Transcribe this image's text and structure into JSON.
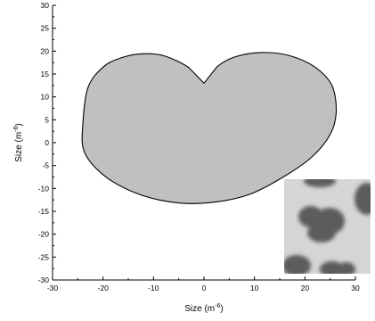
{
  "chart_data": {
    "type": "area",
    "title": "",
    "xlabel": "Size (m",
    "xlabel_exp": "-6",
    "ylabel": "Size (m",
    "ylabel_exp": "-6",
    "xlim": [
      -30,
      30
    ],
    "ylim": [
      -30,
      30
    ],
    "x_ticks": [
      -30,
      -20,
      -10,
      0,
      10,
      20,
      30
    ],
    "y_ticks": [
      -30,
      -25,
      -20,
      -15,
      -10,
      -5,
      0,
      5,
      10,
      15,
      20,
      25,
      30
    ],
    "grid": false,
    "fill_color": "#c0c0c0",
    "outline_color": "#000000",
    "series": [
      {
        "shape": "heart",
        "points": [
          [
            0,
            13
          ],
          [
            2.6,
            16.6
          ],
          [
            6.3,
            18.8
          ],
          [
            11.5,
            19.7
          ],
          [
            17.0,
            19.0
          ],
          [
            22.0,
            16.5
          ],
          [
            25.3,
            12.6
          ],
          [
            26.2,
            7.0
          ],
          [
            25.1,
            2.0
          ],
          [
            21.5,
            -3.0
          ],
          [
            16.0,
            -7.3
          ],
          [
            8.5,
            -11.5
          ],
          [
            0,
            -13.2
          ],
          [
            -7.0,
            -12.9
          ],
          [
            -14.0,
            -10.8
          ],
          [
            -20.0,
            -7.0
          ],
          [
            -23.7,
            -2.0
          ],
          [
            -24.0,
            4.0
          ],
          [
            -23.0,
            12.0
          ],
          [
            -20.0,
            16.5
          ],
          [
            -16.5,
            18.5
          ],
          [
            -12.5,
            19.4
          ],
          [
            -8.0,
            19.0
          ],
          [
            -3.0,
            16.4
          ]
        ]
      }
    ]
  },
  "inset": {
    "kind": "grayscale-micrograph",
    "background_color": "#d9d9d9",
    "blob_color": "#4f4f4f"
  }
}
